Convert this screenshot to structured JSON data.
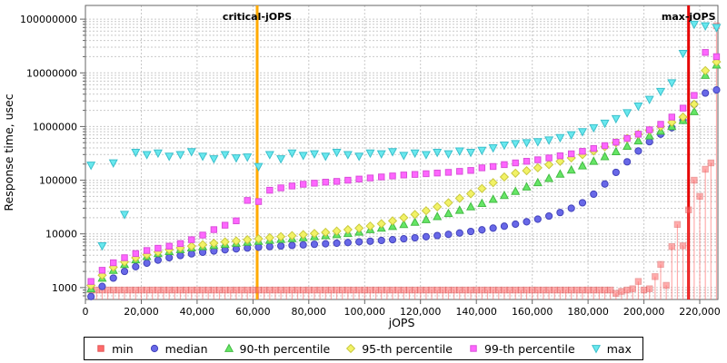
{
  "chart_data": {
    "type": "scatter",
    "title": "",
    "xlabel": "jOPS",
    "ylabel": "Response time, usec",
    "grid": true,
    "legend_position": "bottom",
    "x_axis": {
      "min": 0,
      "max": 226500,
      "tick_values": [
        0,
        20000,
        40000,
        60000,
        80000,
        100000,
        120000,
        140000,
        160000,
        180000,
        200000,
        220000
      ],
      "tick_labels": [
        "0",
        "20,000",
        "40,000",
        "60,000",
        "80,000",
        "100,000",
        "120,000",
        "140,000",
        "160,000",
        "180,000",
        "200,000",
        "220,000"
      ]
    },
    "y_axis": {
      "scale": "log",
      "min": 600,
      "max": 180000000,
      "tick_values": [
        1000,
        10000,
        100000,
        1000000,
        10000000,
        100000000
      ],
      "tick_labels": [
        "1000",
        "10000",
        "100000",
        "1000000",
        "10000000",
        "100000000"
      ]
    },
    "reference_lines": [
      {
        "label": "critical-jOPS",
        "x": 61500,
        "color": "#ffaa00"
      },
      {
        "label": "max-jOPS",
        "x": 216000,
        "color": "#e60000"
      }
    ],
    "series": [
      {
        "name": "min",
        "label": "min",
        "marker": "square",
        "color": "#ff6a6a",
        "stroke": "#e05555",
        "opacity": 0.55,
        "stem": true,
        "baseline": {
          "x_from": 2000,
          "x_to": 188000,
          "x_step": 2000,
          "value": 900
        },
        "points": [
          [
            190000,
            780
          ],
          [
            192000,
            850
          ],
          [
            194000,
            900
          ],
          [
            196000,
            950
          ],
          [
            198000,
            1300
          ],
          [
            200000,
            900
          ],
          [
            202000,
            950
          ],
          [
            204000,
            1600
          ],
          [
            206000,
            2700
          ],
          [
            208000,
            1100
          ],
          [
            210000,
            5800
          ],
          [
            212000,
            15000
          ],
          [
            214000,
            6000
          ],
          [
            216000,
            28000
          ],
          [
            218000,
            100000
          ],
          [
            220000,
            50000
          ],
          [
            222000,
            160000
          ],
          [
            224000,
            210000
          ],
          [
            226000,
            75000000
          ]
        ]
      },
      {
        "name": "median",
        "label": "median",
        "marker": "circle",
        "color": "#6868e8",
        "stroke": "#4444bb",
        "opacity": 1,
        "x_start": 2000,
        "x_step": 4000,
        "values": [
          680,
          1050,
          1500,
          2000,
          2450,
          2850,
          3250,
          3600,
          3950,
          4250,
          4550,
          4800,
          5050,
          5250,
          5450,
          5650,
          5800,
          5950,
          6100,
          6250,
          6400,
          6550,
          6700,
          6900,
          7100,
          7300,
          7550,
          7800,
          8100,
          8450,
          8850,
          9300,
          9800,
          10400,
          11100,
          11900,
          12800,
          13900,
          15200,
          16800,
          18800,
          21500,
          25000,
          30000,
          38000,
          55000,
          85000,
          140000,
          220000,
          350000,
          520000,
          720000,
          950000,
          1300000,
          2600000,
          4200000,
          4800000
        ]
      },
      {
        "name": "p90",
        "label": "90-th percentile",
        "marker": "triangle-up",
        "color": "#66e666",
        "stroke": "#44bb44",
        "opacity": 1,
        "x_start": 2000,
        "x_step": 4000,
        "values": [
          950,
          1500,
          2100,
          2700,
          3300,
          3800,
          4300,
          4700,
          5100,
          5500,
          5800,
          6100,
          6400,
          6700,
          7000,
          7300,
          7600,
          7900,
          8200,
          8500,
          8900,
          9300,
          9700,
          10200,
          10800,
          12000,
          12800,
          13800,
          15000,
          16500,
          18500,
          21000,
          24000,
          27500,
          32000,
          37000,
          44000,
          52000,
          62000,
          75000,
          90000,
          108000,
          130000,
          155000,
          185000,
          225000,
          275000,
          340000,
          430000,
          540000,
          670000,
          820000,
          1000000,
          1300000,
          1900000,
          9000000,
          14000000
        ]
      },
      {
        "name": "p95",
        "label": "95-th percentile",
        "marker": "diamond",
        "color": "#f2f266",
        "stroke": "#c9c93f",
        "opacity": 1,
        "x_start": 2000,
        "x_step": 4000,
        "values": [
          1100,
          1700,
          2400,
          3000,
          3600,
          4100,
          4600,
          5100,
          5500,
          5900,
          6300,
          6700,
          7100,
          7400,
          7800,
          8100,
          8500,
          8900,
          9300,
          9700,
          10200,
          10700,
          11300,
          12000,
          12800,
          14000,
          15500,
          17500,
          20000,
          23000,
          27000,
          32000,
          38000,
          46000,
          56000,
          70000,
          90000,
          115000,
          135000,
          150000,
          170000,
          195000,
          225000,
          260000,
          300000,
          350000,
          420000,
          500000,
          600000,
          720000,
          850000,
          1000000,
          1200000,
          1500000,
          2600000,
          11000000,
          16000000
        ]
      },
      {
        "name": "p99",
        "label": "99-th percentile",
        "marker": "square",
        "color": "#ff66ff",
        "stroke": "#d94fd9",
        "opacity": 1,
        "x_start": 2000,
        "x_step": 4000,
        "values": [
          1300,
          2100,
          2900,
          3600,
          4300,
          4900,
          5400,
          5900,
          6600,
          7800,
          9500,
          12000,
          14500,
          17500,
          42000,
          40000,
          65000,
          72000,
          78000,
          84000,
          88000,
          92000,
          95000,
          100000,
          105000,
          110000,
          115000,
          120000,
          125000,
          128000,
          132000,
          136000,
          140000,
          146000,
          152000,
          170000,
          180000,
          195000,
          210000,
          225000,
          240000,
          260000,
          285000,
          310000,
          345000,
          390000,
          440000,
          510000,
          600000,
          720000,
          870000,
          1100000,
          1500000,
          2200000,
          3800000,
          24000000,
          20000000
        ]
      },
      {
        "name": "max",
        "label": "max",
        "marker": "triangle-down",
        "color": "#69e8ee",
        "stroke": "#3cc0cc",
        "opacity": 1,
        "x_start": 2000,
        "x_step": 4000,
        "values": [
          190000,
          6000,
          210000,
          23000,
          330000,
          300000,
          320000,
          280000,
          300000,
          340000,
          280000,
          250000,
          300000,
          260000,
          270000,
          180000,
          300000,
          250000,
          320000,
          290000,
          310000,
          280000,
          330000,
          300000,
          280000,
          320000,
          310000,
          340000,
          290000,
          320000,
          300000,
          330000,
          310000,
          350000,
          330000,
          360000,
          400000,
          450000,
          480000,
          500000,
          520000,
          560000,
          620000,
          700000,
          800000,
          950000,
          1150000,
          1400000,
          1800000,
          2400000,
          3200000,
          4500000,
          6500000,
          23000000,
          80000000,
          75000000,
          70000000
        ]
      }
    ]
  },
  "layout_colors": {
    "grid": "#c9c9c9",
    "plot_border": "#666666",
    "background": "#ffffff"
  }
}
